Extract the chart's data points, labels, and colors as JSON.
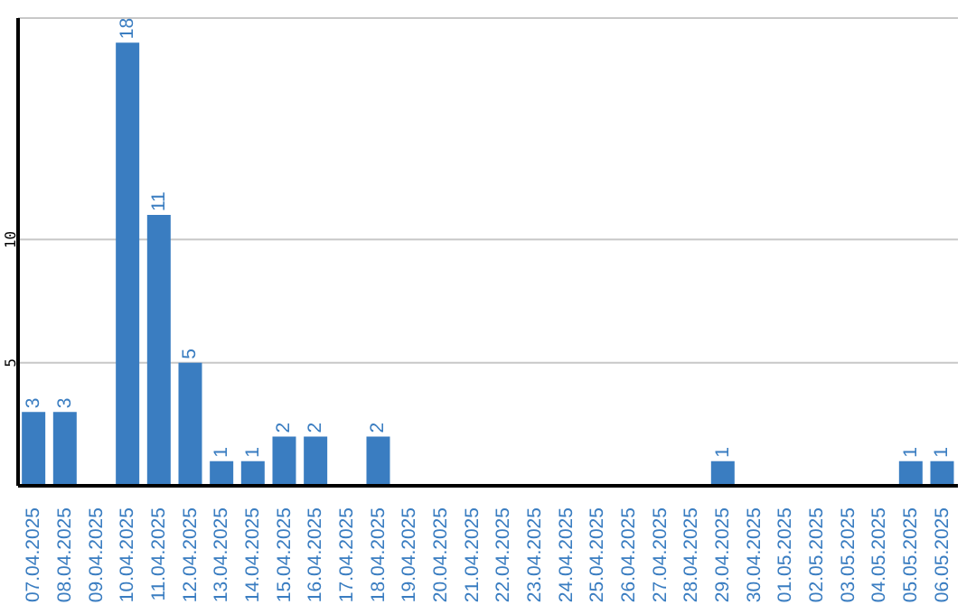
{
  "chart_data": {
    "type": "bar",
    "categories": [
      "07.04.2025",
      "08.04.2025",
      "09.04.2025",
      "10.04.2025",
      "11.04.2025",
      "12.04.2025",
      "13.04.2025",
      "14.04.2025",
      "15.04.2025",
      "16.04.2025",
      "17.04.2025",
      "18.04.2025",
      "19.04.2025",
      "20.04.2025",
      "21.04.2025",
      "22.04.2025",
      "23.04.2025",
      "24.04.2025",
      "25.04.2025",
      "26.04.2025",
      "27.04.2025",
      "28.04.2025",
      "29.04.2025",
      "30.04.2025",
      "01.05.2025",
      "02.05.2025",
      "03.05.2025",
      "04.05.2025",
      "05.05.2025",
      "06.05.2025"
    ],
    "values": [
      3,
      3,
      0,
      18,
      11,
      5,
      1,
      1,
      2,
      2,
      0,
      2,
      0,
      0,
      0,
      0,
      0,
      0,
      0,
      0,
      0,
      0,
      1,
      0,
      0,
      0,
      0,
      0,
      1,
      1
    ],
    "value_labels": [
      "3",
      "3",
      null,
      "18",
      "11",
      "5",
      "1",
      "1",
      "2",
      "2",
      null,
      "2",
      null,
      null,
      null,
      null,
      null,
      null,
      null,
      null,
      null,
      null,
      "1",
      null,
      null,
      null,
      null,
      null,
      "1",
      "1"
    ],
    "color": "#3a7dc1",
    "ylim": [
      0,
      19
    ],
    "yticks": [
      5,
      10
    ],
    "grid": "y"
  }
}
